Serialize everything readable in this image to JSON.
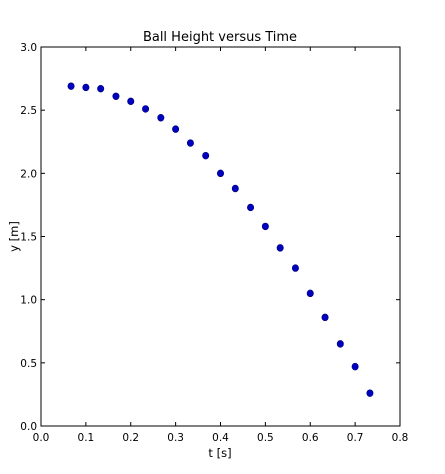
{
  "chart_data": {
    "type": "scatter",
    "title": "Ball Height versus Time",
    "xlabel": "t [s]",
    "ylabel": "y [m]",
    "xlim": [
      0.0,
      0.8
    ],
    "ylim": [
      0.0,
      3.0
    ],
    "x_ticks": [
      "0.0",
      "0.1",
      "0.2",
      "0.3",
      "0.4",
      "0.5",
      "0.6",
      "0.7",
      "0.8"
    ],
    "y_ticks": [
      "0.0",
      "0.5",
      "1.0",
      "1.5",
      "2.0",
      "2.5",
      "3.0"
    ],
    "grid": false,
    "marker_color": "#0000bf",
    "series": [
      {
        "points": [
          {
            "x": 0.067,
            "y": 2.69
          },
          {
            "x": 0.1,
            "y": 2.68
          },
          {
            "x": 0.133,
            "y": 2.67
          },
          {
            "x": 0.167,
            "y": 2.61
          },
          {
            "x": 0.2,
            "y": 2.57
          },
          {
            "x": 0.233,
            "y": 2.51
          },
          {
            "x": 0.267,
            "y": 2.44
          },
          {
            "x": 0.3,
            "y": 2.35
          },
          {
            "x": 0.333,
            "y": 2.24
          },
          {
            "x": 0.367,
            "y": 2.14
          },
          {
            "x": 0.4,
            "y": 2.0
          },
          {
            "x": 0.433,
            "y": 1.88
          },
          {
            "x": 0.467,
            "y": 1.73
          },
          {
            "x": 0.5,
            "y": 1.58
          },
          {
            "x": 0.533,
            "y": 1.41
          },
          {
            "x": 0.567,
            "y": 1.25
          },
          {
            "x": 0.6,
            "y": 1.05
          },
          {
            "x": 0.633,
            "y": 0.86
          },
          {
            "x": 0.667,
            "y": 0.65
          },
          {
            "x": 0.7,
            "y": 0.47
          },
          {
            "x": 0.733,
            "y": 0.26
          }
        ]
      }
    ]
  }
}
